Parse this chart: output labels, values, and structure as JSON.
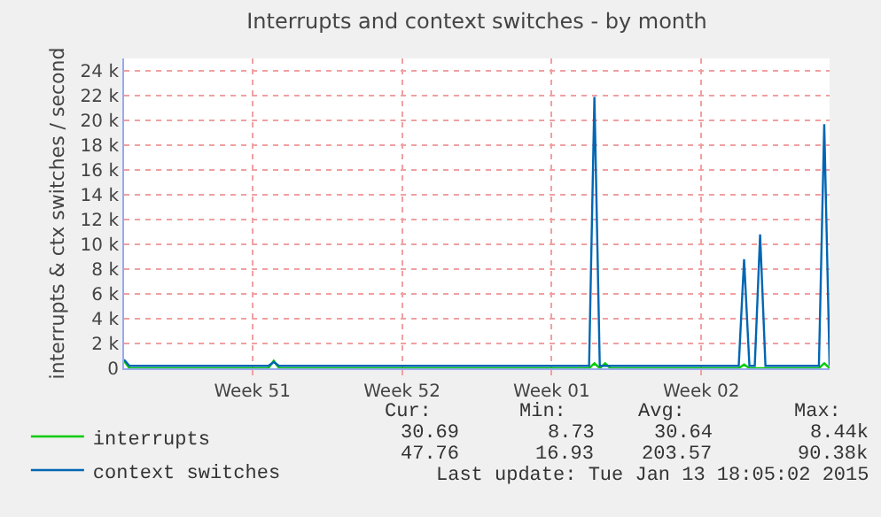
{
  "chart_data": {
    "type": "line",
    "title": "Interrupts and context switches - by month",
    "ylabel": "interrupts & ctx switches / second",
    "categories": [
      null,
      null,
      null,
      null,
      null,
      null,
      null,
      null,
      null,
      null,
      null,
      null,
      null,
      null,
      null,
      null,
      null,
      null,
      null,
      null,
      null,
      null,
      null,
      null,
      "Week 51",
      null,
      null,
      null,
      null,
      null,
      null,
      null,
      null,
      null,
      null,
      null,
      null,
      null,
      null,
      null,
      null,
      null,
      null,
      null,
      null,
      null,
      null,
      null,
      null,
      null,
      null,
      null,
      "Week 52",
      null,
      null,
      null,
      null,
      null,
      null,
      null,
      null,
      null,
      null,
      null,
      null,
      null,
      null,
      null,
      null,
      null,
      null,
      null,
      null,
      null,
      null,
      null,
      null,
      null,
      null,
      null,
      "Week 01",
      null,
      null,
      null,
      null,
      null,
      null,
      null,
      null,
      null,
      null,
      null,
      null,
      null,
      null,
      null,
      null,
      null,
      null,
      null,
      null,
      null,
      null,
      null,
      null,
      null,
      null,
      null,
      "Week 02",
      null,
      null,
      null,
      null,
      null,
      null,
      null,
      null,
      null,
      null,
      null,
      null,
      null,
      null,
      null,
      null,
      null,
      null,
      null,
      null,
      null,
      null,
      null,
      null
    ],
    "series": [
      {
        "name": "interrupts",
        "color": "#00cc00",
        "values": [
          600,
          0,
          0,
          0,
          0,
          0,
          0,
          0,
          0,
          0,
          0,
          0,
          0,
          0,
          0,
          0,
          0,
          0,
          0,
          0,
          0,
          0,
          0,
          0,
          0,
          0,
          0,
          0,
          600,
          0,
          0,
          0,
          0,
          0,
          0,
          0,
          0,
          0,
          0,
          0,
          0,
          0,
          0,
          0,
          0,
          0,
          0,
          0,
          0,
          0,
          0,
          0,
          0,
          0,
          0,
          0,
          0,
          0,
          0,
          0,
          0,
          0,
          0,
          0,
          0,
          0,
          0,
          0,
          0,
          0,
          0,
          0,
          0,
          0,
          0,
          0,
          0,
          0,
          0,
          0,
          0,
          0,
          0,
          0,
          0,
          0,
          0,
          0,
          400,
          0,
          400,
          0,
          0,
          0,
          0,
          0,
          0,
          0,
          0,
          0,
          0,
          0,
          0,
          0,
          0,
          0,
          0,
          0,
          0,
          0,
          0,
          0,
          0,
          0,
          0,
          0,
          300,
          0,
          0,
          0,
          0,
          0,
          0,
          0,
          0,
          0,
          0,
          0,
          0,
          0,
          0,
          400,
          0
        ]
      },
      {
        "name": "context switches",
        "color": "#0066b3",
        "values": [
          700,
          200,
          200,
          200,
          200,
          200,
          200,
          200,
          200,
          200,
          200,
          200,
          200,
          200,
          200,
          200,
          200,
          200,
          200,
          200,
          200,
          200,
          200,
          200,
          200,
          200,
          200,
          200,
          500,
          200,
          200,
          200,
          200,
          200,
          200,
          200,
          200,
          200,
          200,
          200,
          200,
          200,
          200,
          200,
          200,
          200,
          200,
          200,
          200,
          200,
          200,
          200,
          200,
          200,
          200,
          200,
          200,
          200,
          200,
          200,
          200,
          200,
          200,
          200,
          200,
          200,
          200,
          200,
          200,
          200,
          200,
          200,
          200,
          200,
          200,
          200,
          200,
          200,
          200,
          200,
          200,
          200,
          200,
          200,
          200,
          200,
          200,
          200,
          21900,
          200,
          200,
          200,
          200,
          200,
          200,
          200,
          200,
          200,
          200,
          200,
          200,
          200,
          200,
          200,
          200,
          200,
          200,
          200,
          200,
          200,
          200,
          200,
          200,
          200,
          200,
          200,
          8800,
          200,
          200,
          10800,
          200,
          200,
          200,
          200,
          200,
          200,
          200,
          200,
          200,
          200,
          200,
          19700,
          200
        ]
      }
    ],
    "ylim": [
      0,
      25000
    ],
    "yticks": [
      0,
      {
        "value": 2000,
        "label": "2 k"
      },
      {
        "value": 4000,
        "label": "4 k"
      },
      {
        "value": 6000,
        "label": "6 k"
      },
      {
        "value": 8000,
        "label": "8 k"
      },
      {
        "value": 10000,
        "label": "10 k"
      },
      {
        "value": 12000,
        "label": "12 k"
      },
      {
        "value": 14000,
        "label": "14 k"
      },
      {
        "value": 16000,
        "label": "16 k"
      },
      {
        "value": 18000,
        "label": "18 k"
      },
      {
        "value": 20000,
        "label": "20 k"
      },
      {
        "value": 22000,
        "label": "22 k"
      },
      {
        "value": 24000,
        "label": "24 k"
      }
    ],
    "grid": true,
    "legend": "bottom left",
    "marker": "none",
    "line_style": "solid",
    "annotations": [
      "Cur:",
      "Min:",
      "Avg:",
      "Max:",
      "30.69",
      "8.73",
      "30.64",
      "8.44k",
      "47.76",
      "16.93",
      "203.57",
      "90.38k",
      "Last update: Tue Jan 13 18:05:02 2015"
    ]
  }
}
